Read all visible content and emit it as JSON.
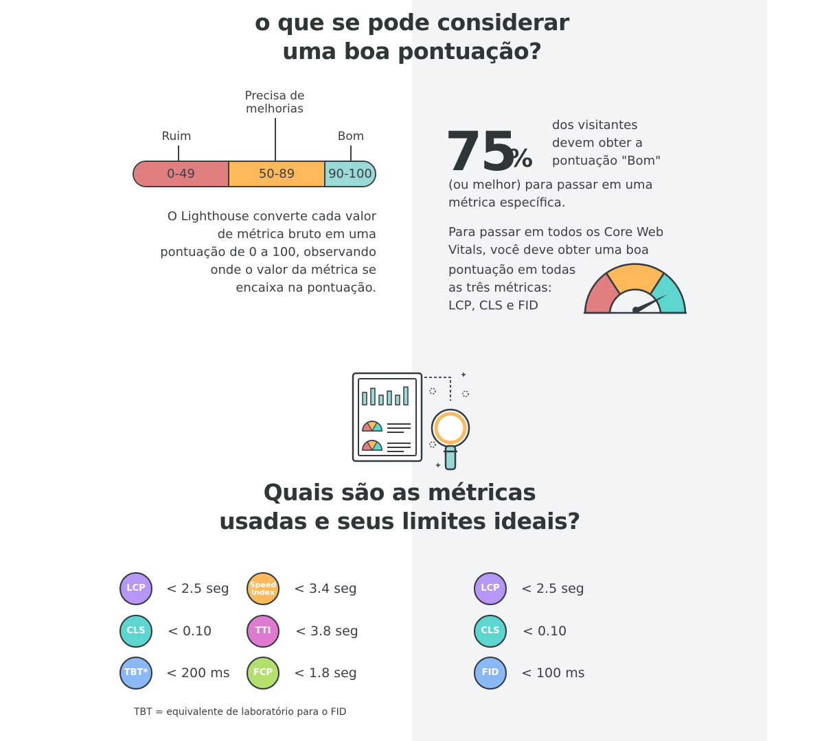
{
  "section1": {
    "title_line1": "o que se pode considerar",
    "title_line2": "uma boa pontuação?"
  },
  "score_bar": {
    "label_bad": "Ruim",
    "label_mid_line1": "Precisa de",
    "label_mid_line2": "melhorias",
    "label_good": "Bom",
    "seg_bad": "0-49",
    "seg_mid": "50-89",
    "seg_good": "90-100",
    "colors": {
      "bad": "#e17f80",
      "mid": "#fdb95a",
      "good": "#9adad6"
    }
  },
  "lighthouse_text": {
    "line1": "O Lighthouse converte cada valor",
    "line2": "de métrica bruto em uma",
    "line3": "pontuação de 0 a 100, observando",
    "line4": "onde o valor da métrica se",
    "line5": "encaixa na pontuação."
  },
  "visitors": {
    "number": "75",
    "percent": "%",
    "line1": "dos visitantes",
    "line2": "devem obter a",
    "line3": "pontuação \"Bom\"",
    "line4": "(ou melhor) para passar em uma",
    "line5": "métrica específica."
  },
  "core_web": {
    "line1": "Para passar em todos os Core Web",
    "line2": "Vitals, você deve obter uma boa",
    "line3": "pontuação em todas",
    "line4": "as três métricas:",
    "line5": "LCP, CLS e FID"
  },
  "section2": {
    "title_line1": "Quais são as métricas",
    "title_line2": "usadas e seus limites ideais?"
  },
  "lab_metrics": [
    {
      "name": "LCP",
      "value": "< 2.5 seg",
      "color": "#b697f5"
    },
    {
      "name": "CLS",
      "value": "< 0.10",
      "color": "#5dd6cf"
    },
    {
      "name": "TBT*",
      "value": "< 200 ms",
      "color": "#8ab8f5"
    },
    {
      "name": "Speed Index",
      "value": "< 3.4 seg",
      "color": "#fdb95a"
    },
    {
      "name": "TTI",
      "value": "< 3.8 seg",
      "color": "#e07ad0"
    },
    {
      "name": "FCP",
      "value": "< 1.8 seg",
      "color": "#b3df6c"
    }
  ],
  "field_metrics": [
    {
      "name": "LCP",
      "value": "< 2.5 seg",
      "color": "#b697f5"
    },
    {
      "name": "CLS",
      "value": "< 0.10",
      "color": "#5dd6cf"
    },
    {
      "name": "FID",
      "value": "< 100 ms",
      "color": "#8ab8f5"
    }
  ],
  "footnote": "TBT = equivalente de laboratório para o FID",
  "icons": {
    "gauge": "speedometer-icon",
    "report": "report-magnifier-icon"
  }
}
